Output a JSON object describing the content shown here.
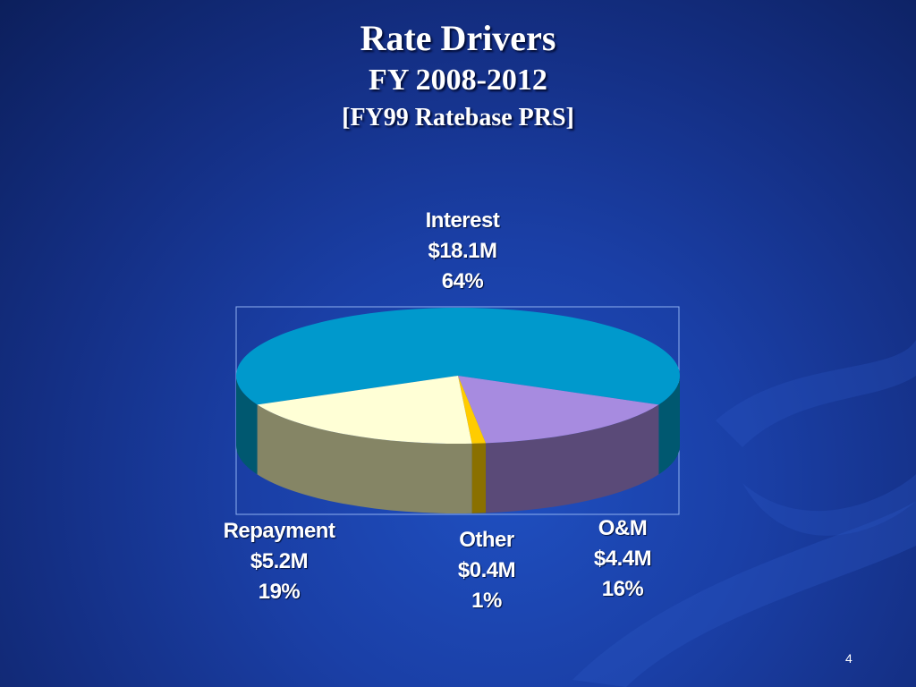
{
  "slide": {
    "title": "Rate Drivers",
    "subtitle": "FY 2008-2012",
    "subtitle2": "[FY99 Ratebase PRS]",
    "page_number": "4"
  },
  "chart_data": {
    "type": "pie",
    "title": "Rate Drivers",
    "subtitle": "FY 2008-2012 [FY99 Ratebase PRS]",
    "units": "$M",
    "slices": [
      {
        "name": "Interest",
        "value": 18.1,
        "value_label": "$18.1M",
        "percent": 64,
        "percent_label": "64%",
        "color": "#0099cc",
        "side_color": "#005870"
      },
      {
        "name": "O&M",
        "value": 4.4,
        "value_label": "$4.4M",
        "percent": 16,
        "percent_label": "16%",
        "color": "#a78be0",
        "side_color": "#5a4a78"
      },
      {
        "name": "Other",
        "value": 0.4,
        "value_label": "$0.4M",
        "percent": 1,
        "percent_label": "1%",
        "color": "#ffcc00",
        "side_color": "#8a7000"
      },
      {
        "name": "Repayment",
        "value": 5.2,
        "value_label": "$5.2M",
        "percent": 19,
        "percent_label": "19%",
        "color": "#ffffd6",
        "side_color": "#858565"
      }
    ],
    "style": "3d-pie"
  }
}
